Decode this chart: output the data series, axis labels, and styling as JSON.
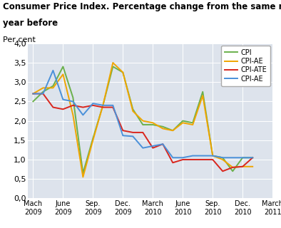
{
  "title_line1": "Consumer Price Index. Percentage change from the same month one",
  "title_line2": "year before",
  "ylabel": "Per cent",
  "x_labels": [
    "Mach\n2009",
    "June\n2009",
    "Sep.\n2009",
    "Dec.\n2009",
    "March\n2010",
    "June\n2010",
    "Sep.\n2010",
    "Dec.\n2010",
    "March\n2011"
  ],
  "x_tick_positions": [
    0,
    3,
    6,
    9,
    12,
    15,
    18,
    21,
    24
  ],
  "series": {
    "CPI": {
      "color": "#6ab04c",
      "values": [
        2.5,
        2.75,
        2.9,
        3.4,
        2.6,
        0.65,
        1.55,
        2.4,
        3.4,
        3.25,
        2.3,
        1.9,
        1.9,
        1.85,
        1.75,
        2.0,
        1.95,
        2.75,
        1.1,
        1.05,
        0.7,
        1.05,
        1.05
      ]
    },
    "CPI-AE": {
      "color": "#f0a500",
      "values": [
        2.7,
        2.85,
        2.85,
        3.2,
        2.15,
        0.55,
        1.5,
        2.4,
        3.5,
        3.25,
        2.25,
        2.0,
        1.95,
        1.8,
        1.75,
        1.95,
        1.9,
        2.65,
        1.1,
        1.0,
        0.8,
        0.82,
        0.82
      ]
    },
    "CPI-ATE": {
      "color": "#d9251d",
      "values": [
        2.7,
        2.7,
        2.35,
        2.3,
        2.4,
        2.35,
        2.4,
        2.35,
        2.35,
        1.75,
        1.7,
        1.7,
        1.3,
        1.4,
        0.92,
        1.0,
        1.0,
        1.0,
        1.0,
        0.7,
        0.8,
        0.82,
        1.05
      ]
    },
    "CPI-AE2": {
      "color": "#4a90d9",
      "values": [
        2.7,
        2.7,
        3.3,
        2.55,
        2.5,
        2.15,
        2.45,
        2.4,
        2.4,
        1.62,
        1.6,
        1.3,
        1.35,
        1.4,
        1.05,
        1.05,
        1.1,
        1.1,
        1.1,
        1.05,
        1.05,
        1.05,
        1.05
      ]
    }
  },
  "legend_labels": [
    "CPI",
    "CPI-AE",
    "CPI-ATE",
    "CPI-AE"
  ],
  "ylim": [
    0.0,
    4.0
  ],
  "yticks": [
    0.0,
    0.5,
    1.0,
    1.5,
    2.0,
    2.5,
    3.0,
    3.5,
    4.0
  ],
  "background_color": "#dde3ec",
  "title_fontsize": 8.5,
  "axis_fontsize": 8
}
